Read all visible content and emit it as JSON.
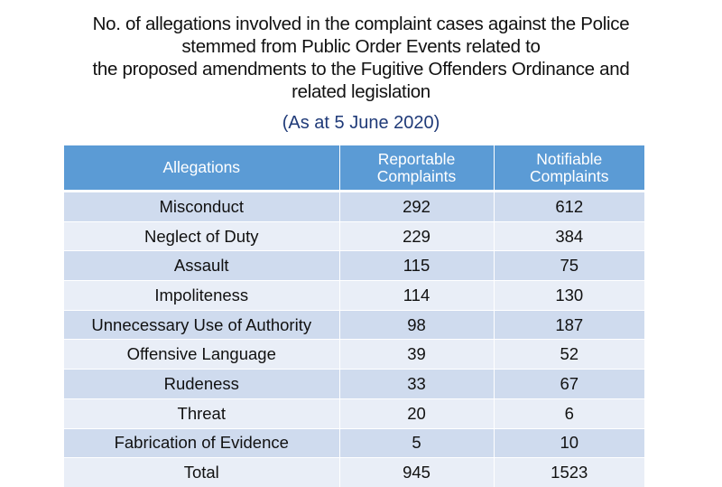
{
  "title_lines": [
    "No. of allegations involved in the complaint cases against the Police",
    "stemmed from Public Order Events related to",
    "the proposed amendments to the Fugitive Offenders Ordinance and",
    "related legislation"
  ],
  "subtitle": "(As at 5 June 2020)",
  "table": {
    "headers": [
      "Allegations",
      "Reportable Complaints",
      "Notifiable Complaints"
    ],
    "rows": [
      [
        "Misconduct",
        "292",
        "612"
      ],
      [
        "Neglect of Duty",
        "229",
        "384"
      ],
      [
        "Assault",
        "115",
        "75"
      ],
      [
        "Impoliteness",
        "114",
        "130"
      ],
      [
        "Unnecessary Use of Authority",
        "98",
        "187"
      ],
      [
        "Offensive Language",
        "39",
        "52"
      ],
      [
        "Rudeness",
        "33",
        "67"
      ],
      [
        "Threat",
        "20",
        "6"
      ],
      [
        "Fabrication of Evidence",
        "5",
        "10"
      ],
      [
        "Total",
        "945",
        "1523"
      ]
    ]
  },
  "colors": {
    "header_bg": "#5b9bd5",
    "row_dark": "#cfdbee",
    "row_light": "#e9eef7",
    "subtitle": "#1f3a78"
  }
}
